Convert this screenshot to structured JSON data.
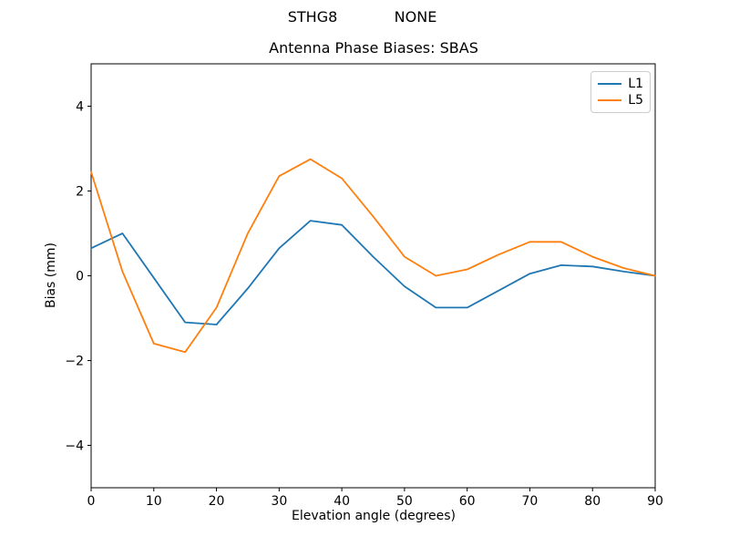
{
  "figure": {
    "suptitle_left": "STHG8",
    "suptitle_right": "NONE"
  },
  "chart_data": {
    "type": "line",
    "title": "Antenna Phase Biases: SBAS",
    "xlabel": "Elevation angle (degrees)",
    "ylabel": "Bias (mm)",
    "xlim": [
      0,
      90
    ],
    "ylim": [
      -5,
      5
    ],
    "xticks": [
      0,
      10,
      20,
      30,
      40,
      50,
      60,
      70,
      80,
      90
    ],
    "yticks": [
      -4,
      -2,
      0,
      2,
      4
    ],
    "grid": false,
    "legend_position": "upper right",
    "x": [
      0,
      5,
      10,
      15,
      20,
      25,
      30,
      35,
      40,
      45,
      50,
      55,
      60,
      65,
      70,
      75,
      80,
      85,
      90
    ],
    "series": [
      {
        "name": "L1",
        "color": "#1f77b4",
        "values": [
          0.65,
          1.0,
          -0.05,
          -1.1,
          -1.15,
          -0.3,
          0.65,
          1.3,
          1.2,
          0.45,
          -0.25,
          -0.75,
          -0.75,
          -0.35,
          0.05,
          0.25,
          0.22,
          0.1,
          0.0
        ]
      },
      {
        "name": "L5",
        "color": "#ff7f0e",
        "values": [
          2.45,
          0.1,
          -1.6,
          -1.8,
          -0.75,
          1.0,
          2.35,
          2.75,
          2.3,
          1.4,
          0.45,
          0.0,
          0.15,
          0.5,
          0.8,
          0.8,
          0.45,
          0.18,
          0.0
        ]
      }
    ]
  }
}
